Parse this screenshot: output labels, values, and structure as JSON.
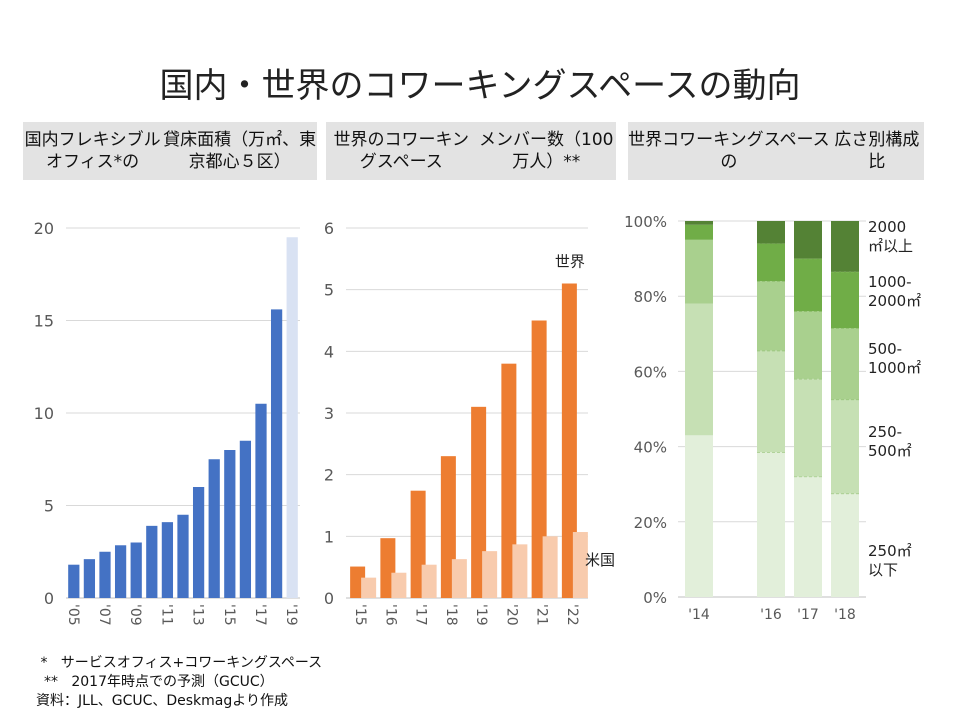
{
  "title": "国内・世界のコワーキングスペースの動向",
  "panels": [
    {
      "line1": "国内フレキシブルオフィス*の",
      "line2": "貸床面積（万㎡、東京都心５区）"
    },
    {
      "line1": "世界のコワーキングスペース",
      "line2": "メンバー数（100万人）**"
    },
    {
      "line1": "世界コワーキングスペースの",
      "line2": "広さ別構成比"
    }
  ],
  "footnotes": {
    "note1": " *   サービスオフィス+コワーキングスペース",
    "note2": "**   2017年時点での予測（GCUC）",
    "source": "資料：JLL、GCUC、Deskmagより作成"
  },
  "colors": {
    "blue": "#4472c4",
    "blue_forecast": "#d9e2f3",
    "orange": "#ed7d31",
    "orange_light": "#f8cbad",
    "g1": "#e2efda",
    "g2": "#c6e0b4",
    "g3": "#a9d08e",
    "g4": "#70ad47",
    "g5": "#548235"
  },
  "chart_data": [
    {
      "type": "bar",
      "title": "国内フレキシブルオフィス*の貸床面積（万㎡、東京都心５区）",
      "categories": [
        "'05",
        "'06",
        "'07",
        "'08",
        "'09",
        "'10",
        "'11",
        "'12",
        "'13",
        "'14",
        "'15",
        "'16",
        "'17",
        "'18",
        "'19"
      ],
      "tick_labels": [
        "'05",
        "'07",
        "'09",
        "'11",
        "'13",
        "'15",
        "'17",
        "'19"
      ],
      "values": [
        1.8,
        2.1,
        2.5,
        2.85,
        3.0,
        3.9,
        4.1,
        4.5,
        6.0,
        7.5,
        8.0,
        8.5,
        10.5,
        15.6,
        19.5
      ],
      "ylim": [
        0,
        20
      ],
      "yticks": [
        0,
        5,
        10,
        15,
        20
      ],
      "grid": true
    },
    {
      "type": "bar",
      "title": "世界のコワーキングスペースメンバー数（100万人）**",
      "categories": [
        "'15",
        "'16",
        "'17",
        "'18",
        "'19",
        "'20",
        "'21",
        "'22"
      ],
      "series": [
        {
          "name": "世界",
          "values": [
            0.51,
            0.97,
            1.74,
            2.3,
            3.1,
            3.8,
            4.5,
            5.1
          ]
        },
        {
          "name": "米国",
          "values": [
            0.33,
            0.41,
            0.54,
            0.63,
            0.76,
            0.87,
            1.0,
            1.07
          ]
        }
      ],
      "ylim": [
        0,
        6
      ],
      "yticks": [
        0,
        1,
        2,
        3,
        4,
        5,
        6
      ],
      "grid": true
    },
    {
      "type": "bar",
      "stacked": true,
      "title": "世界コワーキングスペースの広さ別構成比",
      "categories": [
        "'14",
        "'16",
        "'17",
        "'18"
      ],
      "series": [
        {
          "name": "250㎡以下",
          "values": [
            43,
            38.5,
            32,
            27.5
          ]
        },
        {
          "name": "250-500㎡",
          "values": [
            35,
            27,
            26,
            25
          ]
        },
        {
          "name": "500-1000㎡",
          "values": [
            17,
            18.5,
            18,
            19
          ]
        },
        {
          "name": "1000-2000㎡",
          "values": [
            4,
            10,
            14,
            15
          ]
        },
        {
          "name": "2000㎡以上",
          "values": [
            1,
            6,
            10,
            13.5
          ]
        }
      ],
      "legend_lines": [
        [
          "2000",
          "㎡以上"
        ],
        [
          "1000-",
          "2000㎡"
        ],
        [
          "500-",
          "1000㎡"
        ],
        [
          "250-",
          "500㎡"
        ],
        [
          "250㎡",
          "以下"
        ]
      ],
      "ylim": [
        0,
        100
      ],
      "yticks": [
        "0%",
        "20%",
        "40%",
        "60%",
        "80%",
        "100%"
      ],
      "grid": true
    }
  ]
}
